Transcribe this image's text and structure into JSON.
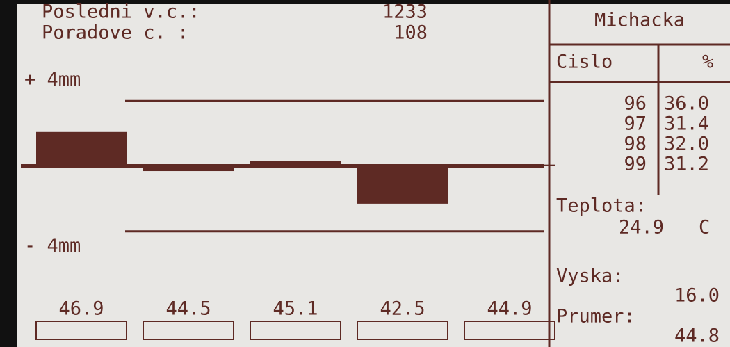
{
  "header": {
    "last_label": "Posledni v.c.:",
    "last_value": "1233",
    "order_label": "Poradove c.  :",
    "order_value": "108"
  },
  "chart_data": {
    "type": "bar",
    "values": [
      2.1,
      -0.3,
      0.3,
      -2.3,
      0.1
    ],
    "color": "#5e2a24",
    "ylim": [
      -7,
      7
    ],
    "yticks": [
      {
        "value": 4,
        "label": "+ 4mm"
      },
      {
        "value": -4,
        "label": "- 4mm"
      }
    ],
    "value_labels": [
      "46.9",
      "44.5",
      "45.1",
      "42.5",
      "44.9"
    ]
  },
  "panel": {
    "title": "Michacka",
    "columns": [
      "Cislo",
      "%"
    ],
    "rows": [
      [
        "96",
        "36.0"
      ],
      [
        "97",
        "31.4"
      ],
      [
        "98",
        "32.0"
      ],
      [
        "99",
        "31.2"
      ]
    ],
    "temp_label": "Teplota:",
    "temp_value": "24.9",
    "temp_unit": "C",
    "height_label": "Vyska:",
    "height_value": "16.0",
    "avg_label": "Prumer:",
    "avg_value": "44.8"
  }
}
